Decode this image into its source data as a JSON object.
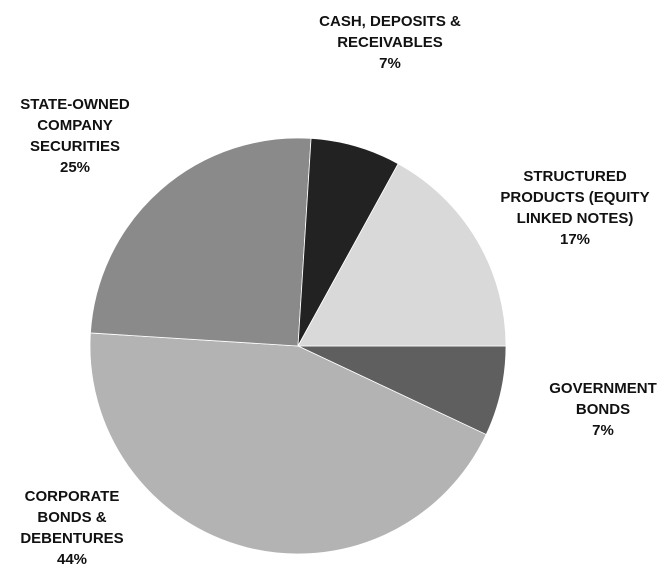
{
  "chart_data": {
    "type": "pie",
    "categories": [
      "GOVERNMENT BONDS",
      "CORPORATE BONDS & DEBENTURES",
      "STATE-OWNED COMPANY SECURITIES",
      "CASH, DEPOSITS & RECEIVABLES",
      "STRUCTURED PRODUCTS (EQUITY LINKED NOTES)"
    ],
    "values": [
      7,
      44,
      25,
      7,
      17
    ],
    "value_labels": [
      "7%",
      "44%",
      "25%",
      "7%",
      "17%"
    ],
    "colors": [
      "#5f5f5f",
      "#b3b3b3",
      "#8a8a8a",
      "#222222",
      "#d9d9d9"
    ]
  }
}
